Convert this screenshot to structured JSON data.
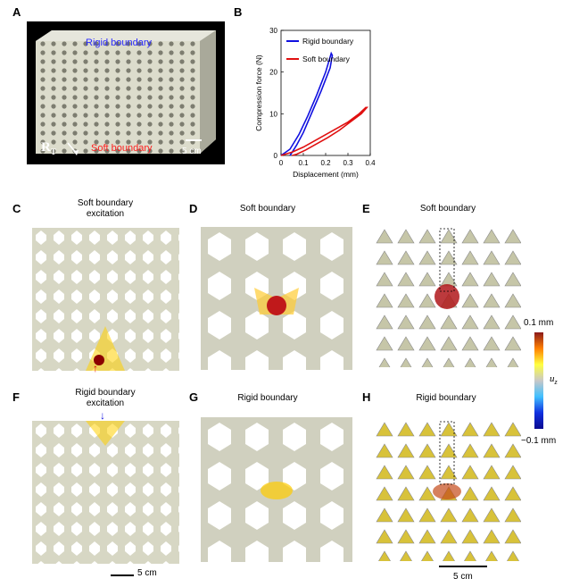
{
  "panels": {
    "A": {
      "label": "A",
      "top_text": "Rigid boundary",
      "bottom_text": "Soft boundary",
      "scale": "5 cm",
      "rt": "R",
      "rt_sub": "T"
    },
    "B": {
      "label": "B"
    },
    "C": {
      "label": "C",
      "title": "Soft boundary\nexcitation"
    },
    "D": {
      "label": "D",
      "title": "Soft boundary"
    },
    "E": {
      "label": "E",
      "title": "Soft boundary"
    },
    "F": {
      "label": "F",
      "title": "Rigid boundary\nexcitation"
    },
    "G": {
      "label": "G",
      "title": "Rigid boundary"
    },
    "H": {
      "label": "H",
      "title": "Rigid boundary"
    }
  },
  "colorbar": {
    "max": "0.1 mm",
    "min": "−0.1 mm",
    "symbol": "u",
    "symbol_sub": "z"
  },
  "scalebars": {
    "left": "5 cm",
    "right": "5 cm"
  },
  "chart_data": {
    "type": "line",
    "xlabel": "Displacement (mm)",
    "ylabel": "Compression force (N)",
    "xlim": [
      0,
      0.4
    ],
    "ylim": [
      0,
      30
    ],
    "xticks": [
      "0",
      "0.1",
      "0.2",
      "0.3",
      "0.4"
    ],
    "yticks": [
      "0",
      "10",
      "20",
      "30"
    ],
    "legend": "top-left",
    "series": [
      {
        "name": "Rigid boundary",
        "color": "#1010e0",
        "x": [
          0,
          0.04,
          0.08,
          0.12,
          0.16,
          0.2,
          0.225,
          0.23,
          0.22,
          0.18,
          0.14,
          0.1,
          0.07,
          0.05,
          0.04
        ],
        "y": [
          0,
          1.5,
          5,
          9.5,
          14.5,
          20,
          24.5,
          24,
          21,
          15.5,
          10.5,
          5.5,
          2.5,
          0.8,
          0
        ]
      },
      {
        "name": "Soft boundary",
        "color": "#e01010",
        "x": [
          0,
          0.05,
          0.1,
          0.15,
          0.2,
          0.25,
          0.3,
          0.35,
          0.38,
          0.385,
          0.36,
          0.31,
          0.26,
          0.21,
          0.16,
          0.11,
          0.07,
          0.05
        ],
        "y": [
          0,
          0.8,
          2,
          3.5,
          5,
          6.5,
          8,
          10,
          11.5,
          11.5,
          10,
          8,
          6,
          4.3,
          2.8,
          1.3,
          0.3,
          0
        ]
      }
    ]
  }
}
